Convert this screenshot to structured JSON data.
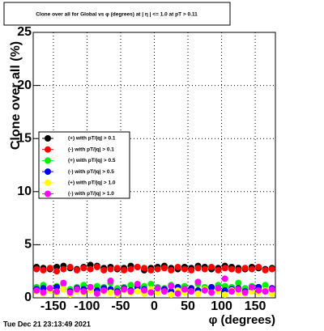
{
  "chart_data": {
    "type": "scatter",
    "title": "Clone  over all for Global vs φ (degrees) at | η | <= 1.0 at pT > 0.11",
    "x_label": "φ (degrees)",
    "y_label": "Clone  over all (%)",
    "timestamp": "Tue Dec 21 23:13:49 2021",
    "x": [
      -175,
      -165,
      -155,
      -145,
      -135,
      -125,
      -115,
      -105,
      -95,
      -85,
      -75,
      -65,
      -55,
      -45,
      -35,
      -25,
      -15,
      -5,
      5,
      15,
      25,
      35,
      45,
      55,
      65,
      75,
      85,
      95,
      105,
      115,
      125,
      135,
      145,
      155,
      165,
      175
    ],
    "series": [
      {
        "name": "(+) with pT/|q| > 0.1",
        "color": "#000000",
        "values": [
          2.9,
          2.8,
          2.7,
          2.9,
          3.0,
          2.8,
          2.7,
          2.9,
          3.1,
          3.0,
          2.8,
          2.9,
          2.7,
          2.8,
          3.0,
          2.9,
          2.6,
          2.8,
          2.9,
          3.0,
          2.8,
          2.7,
          2.9,
          2.8,
          3.0,
          2.9,
          2.7,
          2.8,
          3.0,
          2.9,
          2.8,
          2.7,
          2.9,
          2.8,
          2.7,
          2.8
        ]
      },
      {
        "name": "(-) with pT/|q| > 0.1",
        "color": "#ff0000",
        "values": [
          2.7,
          2.6,
          2.8,
          2.5,
          2.7,
          2.9,
          2.6,
          2.8,
          2.7,
          2.9,
          2.6,
          2.7,
          2.8,
          2.6,
          2.7,
          2.9,
          2.8,
          2.6,
          2.7,
          2.8,
          2.6,
          2.9,
          2.7,
          2.6,
          2.8,
          2.7,
          2.9,
          2.6,
          2.8,
          2.7,
          2.6,
          2.8,
          2.7,
          2.9,
          2.6,
          2.7
        ]
      },
      {
        "name": "(+) with pT/|q| > 0.5",
        "color": "#00ee00",
        "values": [
          1.0,
          1.2,
          0.9,
          1.1,
          1.3,
          0.8,
          1.0,
          1.2,
          0.9,
          1.1,
          1.0,
          1.4,
          0.9,
          1.0,
          1.2,
          0.8,
          1.1,
          1.3,
          1.0,
          0.9,
          1.2,
          1.0,
          1.1,
          0.8,
          1.3,
          1.0,
          0.9,
          1.2,
          1.1,
          1.0,
          1.4,
          0.9,
          1.1,
          1.0,
          1.2,
          0.9
        ]
      },
      {
        "name": "(-) with pT/|q| > 0.5",
        "color": "#0000ee",
        "values": [
          0.8,
          0.9,
          0.7,
          1.0,
          0.8,
          0.6,
          0.9,
          0.8,
          1.0,
          0.7,
          0.9,
          0.8,
          0.6,
          0.9,
          0.7,
          1.0,
          0.8,
          0.7,
          0.9,
          0.8,
          0.6,
          1.0,
          0.8,
          0.9,
          0.7,
          0.8,
          1.0,
          0.9,
          0.7,
          0.8,
          0.9,
          0.6,
          0.8,
          1.0,
          0.7,
          0.9
        ]
      },
      {
        "name": "(+) with pT/|q| > 1.0",
        "color": "#ffff00",
        "values": [
          0.6,
          0.4,
          0.7,
          0.5,
          0.8,
          0.3,
          0.6,
          0.5,
          0.7,
          0.4,
          0.6,
          0.5,
          0.3,
          0.7,
          0.5,
          0.6,
          0.4,
          0.8,
          0.5,
          0.6,
          0.3,
          0.7,
          0.5,
          0.6,
          0.4,
          0.8,
          0.5,
          0.6,
          0.3,
          0.7,
          0.5,
          0.4,
          0.6,
          0.5,
          0.7,
          0.4
        ]
      },
      {
        "name": "(-) with pT/|q| > 1.0",
        "color": "#ff00ff",
        "values": [
          0.7,
          0.5,
          0.9,
          0.6,
          1.4,
          0.5,
          0.8,
          0.6,
          1.0,
          0.4,
          0.7,
          1.6,
          0.5,
          0.8,
          0.6,
          1.3,
          0.7,
          0.5,
          0.9,
          0.6,
          1.1,
          0.4,
          0.8,
          0.6,
          1.5,
          0.7,
          0.5,
          0.9,
          1.8,
          0.6,
          0.8,
          0.5,
          1.0,
          0.7,
          0.6,
          0.8
        ]
      }
    ],
    "xlim": [
      -180,
      180
    ],
    "xticks": [
      -150,
      -100,
      -50,
      0,
      50,
      100,
      150
    ],
    "ylim": [
      0,
      25
    ],
    "yticks": [
      0,
      5,
      10,
      15,
      20,
      25
    ],
    "grid": true,
    "legend_position": "left"
  }
}
